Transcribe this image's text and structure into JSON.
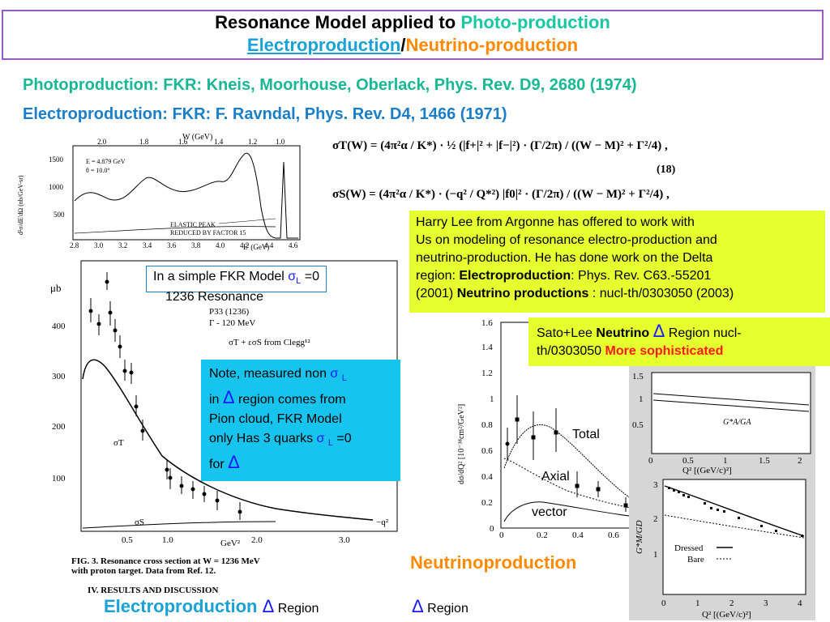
{
  "title": {
    "line1_prefix": "Resonance Model applied to ",
    "line1_photo": "Photo-production",
    "line2_electro": "Electroproduction",
    "line2_sep": "/",
    "line2_neutrino": "Neutrino-production"
  },
  "refs": {
    "photo": "Photoproduction: FKR: Kneis, Moorhouse, Oberlack, Phys. Rev. D9, 2680 (1974)",
    "electro": "Electroproduction: FKR: F. Ravndal, Phys. Rev. D4, 1466 (1971)"
  },
  "top_plot": {
    "xlabel_top": "W (GeV)",
    "top_ticks": [
      "2.0",
      "1.8",
      "1.6",
      "1.4",
      "1.2",
      "1.0"
    ],
    "bottom_ticks": [
      "2.8",
      "3.0",
      "3.2",
      "3.4",
      "3.6",
      "3.8",
      "4.0",
      "4.2",
      "4.4",
      "4.6"
    ],
    "y_ticks": [
      "500",
      "1000",
      "1500"
    ],
    "ylabel": "d²σ/dE'dΩ (nb/GeV-sr)",
    "xlabel": "E' (GeV)",
    "params": [
      "E = 4.879 GeV",
      "θ = 10.0°"
    ],
    "annotation": [
      "ELASTIC PEAK",
      "REDUCED BY FACTOR 15"
    ]
  },
  "formulas": {
    "eq_number": "(18)",
    "sigma_t": "σT(W) = (4π²α / K*) · ½ (|f+|² + |f−|²) · (Γ/2π) / ((W − M)² + Γ²/4) ,",
    "sigma_s": "σS(W) = (4π²α / K*) · (−q² / Q*²) |f0|² · (Γ/2π) / ((W − M)² + Γ²/4) ,"
  },
  "harry_box": {
    "l1": "Harry Lee from Argonne has offered to work with",
    "l2": "Us on modeling of resonance electro-production and",
    "l3": "neutrino-production. He has done work on the Delta",
    "l4_a": "region: ",
    "l4_b": "Electroproduction",
    "l4_c": ":  Phys. Rev. C63.-55201",
    "l5_a": "(2001) ",
    "l5_b": "Neutrino productions",
    "l5_c": " : nucl-th/0303050 (2003)"
  },
  "sato_box": {
    "a": "Sato+Lee ",
    "b": "Neutrino",
    "delta": "Δ",
    "c": " Region nucl-",
    "d": "th/0303050    ",
    "e": "More sophisticated"
  },
  "fkr_note": {
    "a": "In a simple FKR Model ",
    "sigma": "σ",
    "sub": "L",
    "b": " =0",
    "c": "1236 Resonance"
  },
  "left_plot": {
    "ylabel": "μb",
    "y_ticks": [
      "100",
      "200",
      "300",
      "400"
    ],
    "x_ticks": [
      "0.5",
      "1.0",
      "2.0",
      "3.0"
    ],
    "xlabel": "GeV²",
    "xlabel_right": "−q²",
    "legend": [
      "P33 (1236)",
      "Γ - 120 MeV"
    ],
    "data_legend": "σT + εσS   from Clegg¹²",
    "curve_t": "σT",
    "curve_s": "σS",
    "caption1": "FIG. 3.   Resonance cross section at W = 1236 MeV",
    "caption2": "with proton target.   Data from Ref. 12.",
    "section": "IV.  RESULTS AND DISCUSSION"
  },
  "blue_note": {
    "a": "Note, measured non ",
    "sigma": "σ",
    "sub": "L",
    "b": "in ",
    "delta": "Δ",
    "c": " region comes from",
    "d": "Pion cloud, FKR Model",
    "e": "only Has 3 quarks ",
    "f": " =0",
    "g": "for "
  },
  "neutrino_plot": {
    "y_ticks": [
      "0",
      "0.2",
      "0.4",
      "0.6",
      "0.8",
      "1",
      "1.2",
      "1.4",
      "1.6"
    ],
    "x_ticks": [
      "0",
      "0.2",
      "0.4",
      "0.6"
    ],
    "ylabel": "dσ/dQ² [10⁻³⁸cm²/GeV²]",
    "labels": [
      "Total",
      "Axial",
      "vector"
    ]
  },
  "ga_plot": {
    "y_ticks": [
      "0.5",
      "1",
      "1.5"
    ],
    "x_ticks": [
      "0",
      "0.5",
      "1",
      "1.5",
      "2"
    ],
    "label": "G*A/GA",
    "xlabel": "Q² [(GeV/c)²]"
  },
  "gm_plot": {
    "y_ticks": [
      "1",
      "2",
      "3"
    ],
    "x_ticks": [
      "0",
      "1",
      "2",
      "3",
      "4"
    ],
    "ylabel": "G*M/GD",
    "xlabel": "Q² [(GeV/c)²]",
    "legend": [
      "Dressed",
      "Bare"
    ]
  },
  "bottom": {
    "electro": "Electroproduction ",
    "delta": "Δ",
    "region": " Region",
    "neutrino": "Neutrinoproduction",
    "delta2": "Δ",
    "region2": " Region"
  },
  "colors": {
    "title_border": "#9b59c6",
    "photo_green": "#18c8a0",
    "electro_blue": "#1aa1d6",
    "neutrino_orange": "#ff8a00",
    "yellow_box": "#e6ff2e",
    "cyan_box": "#17c4ee"
  }
}
